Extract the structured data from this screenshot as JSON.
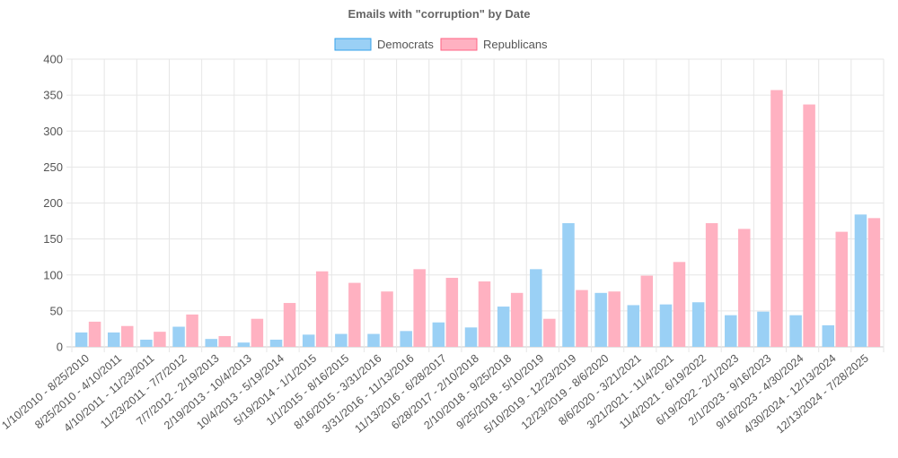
{
  "chart_data": {
    "type": "bar",
    "title": "Emails with \"corruption\" by Date",
    "xlabel": "",
    "ylabel": "",
    "ylim": [
      0,
      400
    ],
    "y_ticks": [
      0,
      50,
      100,
      150,
      200,
      250,
      300,
      350,
      400
    ],
    "grid": true,
    "legend_position": "top-center",
    "categories": [
      "1/10/2010 - 8/25/2010",
      "8/25/2010 - 4/10/2011",
      "4/10/2011 - 11/23/2011",
      "11/23/2011 - 7/7/2012",
      "7/7/2012 - 2/19/2013",
      "2/19/2013 - 10/4/2013",
      "10/4/2013 - 5/19/2014",
      "5/19/2014 - 1/1/2015",
      "1/1/2015 - 8/16/2015",
      "8/16/2015 - 3/31/2016",
      "3/31/2016 - 11/13/2016",
      "11/13/2016 - 6/28/2017",
      "6/28/2017 - 2/10/2018",
      "2/10/2018 - 9/25/2018",
      "9/25/2018 - 5/10/2019",
      "5/10/2019 - 12/23/2019",
      "12/23/2019 - 8/6/2020",
      "8/6/2020 - 3/21/2021",
      "3/21/2021 - 11/4/2021",
      "11/4/2021 - 6/19/2022",
      "6/19/2022 - 2/1/2023",
      "2/1/2023 - 9/16/2023",
      "9/16/2023 - 4/30/2024",
      "4/30/2024 - 12/13/2024",
      "12/13/2024 - 7/28/2025"
    ],
    "series": [
      {
        "name": "Democrats",
        "color": "#36a2eb",
        "fill": "#9ad0f5",
        "values": [
          20,
          20,
          10,
          28,
          11,
          6,
          10,
          17,
          18,
          18,
          22,
          34,
          27,
          56,
          108,
          172,
          75,
          58,
          59,
          62,
          44,
          49,
          44,
          30,
          184
        ]
      },
      {
        "name": "Republicans",
        "color": "#ff6384",
        "fill": "#ffb1c1",
        "values": [
          35,
          29,
          21,
          45,
          15,
          39,
          61,
          105,
          89,
          77,
          108,
          96,
          91,
          75,
          39,
          79,
          77,
          99,
          118,
          172,
          164,
          357,
          337,
          160,
          179
        ]
      }
    ]
  }
}
